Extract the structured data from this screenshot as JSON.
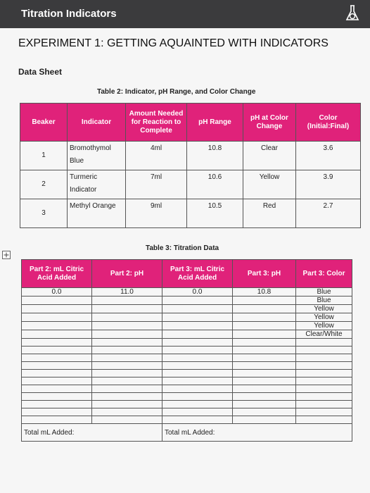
{
  "header": {
    "title": "Titration Indicators"
  },
  "experiment": "EXPERIMENT 1: GETTING AQUAINTED WITH INDICATORS",
  "section": "Data Sheet",
  "table2": {
    "caption": "Table 2: Indicator, pH Range, and Color Change",
    "headers": [
      "Beaker",
      "Indicator",
      "Amount Needed for Reaction to Complete",
      "pH Range",
      "pH at Color Change",
      "Color (Initial:Final)"
    ],
    "rows": [
      [
        "1",
        "Bromothymol Blue",
        "4ml",
        "10.8",
        "Clear",
        "3.6"
      ],
      [
        "2",
        "Turmeric Indicator",
        "7ml",
        "10.6",
        "Yellow",
        "3.9"
      ],
      [
        "3",
        "Methyl Orange",
        "9ml",
        "10.5",
        "Red",
        "2.7"
      ]
    ]
  },
  "table3": {
    "caption": "Table 3: Titration Data",
    "headers": [
      "Part 2: mL Citric Acid Added",
      "Part 2: pH",
      "Part 3: mL Citric Acid Added",
      "Part 3: pH",
      "Part 3: Color"
    ],
    "columns": [
      [
        "0.0"
      ],
      [
        "11.0"
      ],
      [
        "0.0"
      ],
      [
        "10.8"
      ],
      [
        "Blue",
        "Blue",
        "Yellow",
        "Yellow",
        "Yellow",
        "Clear/White"
      ]
    ],
    "totals": [
      "Total mL Added:",
      "Total mL Added:"
    ]
  }
}
